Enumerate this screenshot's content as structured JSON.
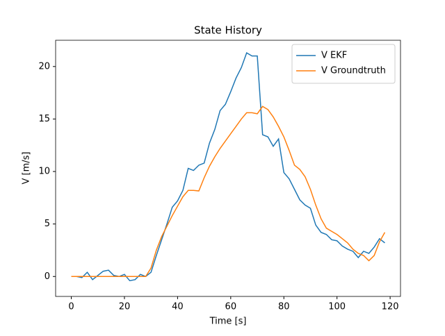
{
  "chart_data": {
    "type": "line",
    "title": "State History",
    "xlabel": "Time [s]",
    "ylabel": "V [m/s]",
    "x": [
      0,
      2,
      4,
      6,
      8,
      10,
      12,
      14,
      16,
      18,
      20,
      22,
      24,
      26,
      28,
      30,
      32,
      34,
      36,
      38,
      40,
      42,
      44,
      46,
      48,
      50,
      52,
      54,
      56,
      58,
      60,
      62,
      64,
      66,
      68,
      70,
      72,
      74,
      76,
      78,
      80,
      82,
      84,
      86,
      88,
      90,
      92,
      94,
      96,
      98,
      100,
      102,
      104,
      106,
      108,
      110,
      112,
      114,
      116,
      118
    ],
    "series": [
      {
        "name": "V EKF",
        "color": "#1f77b4",
        "values": [
          0,
          0,
          -0.1,
          0.4,
          -0.3,
          0.1,
          0.5,
          0.6,
          0.1,
          0.0,
          0.2,
          -0.4,
          -0.3,
          0.2,
          0.0,
          0.4,
          2.0,
          3.5,
          5.0,
          6.6,
          7.2,
          8.2,
          10.3,
          10.1,
          10.6,
          10.8,
          12.7,
          14.0,
          15.8,
          16.4,
          17.6,
          18.9,
          19.9,
          21.3,
          21.0,
          21.0,
          13.5,
          13.3,
          12.4,
          13.1,
          9.9,
          9.3,
          8.3,
          7.3,
          6.8,
          6.5,
          4.9,
          4.2,
          4.0,
          3.5,
          3.4,
          2.9,
          2.6,
          2.4,
          1.8,
          2.4,
          2.2,
          2.8,
          3.6,
          3.2
        ]
      },
      {
        "name": "V Groundtruth",
        "color": "#ff7f0e",
        "values": [
          0,
          0,
          0,
          0,
          0,
          0,
          0,
          0,
          0,
          0,
          0,
          0,
          0,
          0,
          0,
          0.8,
          2.5,
          3.8,
          4.8,
          5.8,
          6.7,
          7.6,
          8.2,
          8.2,
          8.15,
          9.4,
          10.5,
          11.4,
          12.2,
          12.9,
          13.6,
          14.3,
          15.0,
          15.6,
          15.6,
          15.5,
          16.2,
          15.9,
          15.2,
          14.3,
          13.3,
          12.0,
          10.6,
          10.2,
          9.5,
          8.3,
          6.8,
          5.5,
          4.6,
          4.3,
          4.0,
          3.6,
          3.2,
          2.6,
          2.2,
          2.0,
          1.5,
          2.0,
          3.3,
          4.2
        ]
      }
    ],
    "xlim": [
      -5.9,
      123.9
    ],
    "xticks": [
      0,
      20,
      40,
      60,
      80,
      100,
      120
    ],
    "ylim": [
      -1.9,
      22.5
    ],
    "yticks": [
      0,
      5,
      10,
      15,
      20
    ],
    "grid": false,
    "legend": "upper right"
  }
}
